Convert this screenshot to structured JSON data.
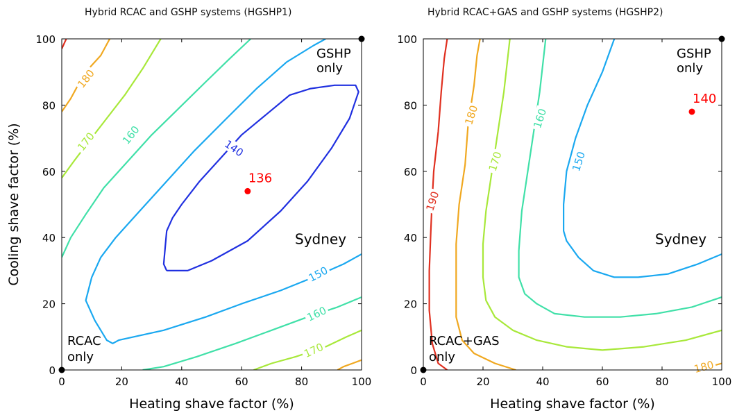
{
  "chart_data": [
    {
      "type": "contour",
      "title": "Hybrid RCAC and GSHP systems (HGSHP1)",
      "xlabel": "Heating shave factor (%)",
      "ylabel": "Cooling shave factor (%)",
      "xlim": [
        0,
        100
      ],
      "ylim": [
        0,
        100
      ],
      "xticks": [
        0,
        20,
        40,
        60,
        80,
        100
      ],
      "yticks": [
        0,
        20,
        40,
        60,
        80,
        100
      ],
      "contours": [
        {
          "level": 140,
          "color": "#2030e0",
          "label": "140",
          "closed": true,
          "points": [
            [
              35,
              30
            ],
            [
              34,
              32
            ],
            [
              34.5,
              37
            ],
            [
              35,
              42
            ],
            [
              37,
              46
            ],
            [
              40,
              50
            ],
            [
              46,
              57
            ],
            [
              53,
              64
            ],
            [
              60,
              71
            ],
            [
              68,
              77
            ],
            [
              76,
              83
            ],
            [
              83,
              85
            ],
            [
              91,
              86
            ],
            [
              98,
              86
            ],
            [
              99,
              84
            ],
            [
              96,
              76
            ],
            [
              90,
              67
            ],
            [
              82,
              57
            ],
            [
              73,
              48
            ],
            [
              62,
              39
            ],
            [
              50,
              33
            ],
            [
              42,
              30
            ],
            [
              36,
              30
            ],
            [
              35,
              30
            ]
          ],
          "label_at": [
            57.5,
            67,
            35
          ]
        },
        {
          "level": 150,
          "color": "#1aa8f0",
          "label": "150",
          "points": [
            [
              100,
              35
            ],
            [
              94,
              32
            ],
            [
              84,
              28
            ],
            [
              73,
              24
            ],
            [
              60,
              20
            ],
            [
              48,
              16
            ],
            [
              34,
              12
            ],
            [
              24,
              10
            ],
            [
              19,
              9
            ],
            [
              17,
              8
            ],
            [
              15,
              9
            ],
            [
              11,
              15
            ],
            [
              8,
              21
            ],
            [
              10,
              28
            ],
            [
              13,
              34
            ],
            [
              18,
              40
            ],
            [
              25,
              47
            ],
            [
              34,
              56
            ],
            [
              44,
              66
            ],
            [
              55,
              76
            ],
            [
              65,
              85
            ],
            [
              75,
              93
            ],
            [
              84,
              98
            ],
            [
              88,
              100
            ]
          ],
          "label_at": [
            85.5,
            29,
            -28
          ]
        },
        {
          "level": 160,
          "color": "#40e0a8",
          "label": "160",
          "points": [
            [
              100,
              22
            ],
            [
              92,
              19
            ],
            [
              82,
              16
            ],
            [
              70,
              12
            ],
            [
              58,
              8
            ],
            [
              45,
              4
            ],
            [
              34,
              1
            ],
            [
              27,
              0
            ]
          ],
          "points2": [
            [
              0,
              34
            ],
            [
              3,
              40
            ],
            [
              8,
              47
            ],
            [
              14,
              55
            ],
            [
              22,
              63
            ],
            [
              30,
              71
            ],
            [
              39,
              79
            ],
            [
              48,
              87
            ],
            [
              56,
              94
            ],
            [
              63,
              100
            ]
          ],
          "label_at": [
            85,
            17,
            -25
          ],
          "label2_at": [
            23,
            71,
            -52
          ]
        },
        {
          "level": 170,
          "color": "#a8e83a",
          "label": "170",
          "points": [
            [
              100,
              12
            ],
            [
              95,
              10
            ],
            [
              88,
              7
            ],
            [
              78,
              4
            ],
            [
              70,
              2
            ],
            [
              64,
              0
            ]
          ],
          "points2": [
            [
              0,
              58
            ],
            [
              4,
              63
            ],
            [
              9,
              69
            ],
            [
              15,
              76
            ],
            [
              21,
              83
            ],
            [
              27,
              91
            ],
            [
              33,
              100
            ]
          ],
          "label_at": [
            84,
            6,
            -25
          ],
          "label2_at": [
            8,
            69,
            -52
          ]
        },
        {
          "level": 180,
          "color": "#f0a820",
          "label": "180",
          "points": [
            [
              100,
              3
            ],
            [
              97,
              2
            ],
            [
              94,
              1
            ],
            [
              92,
              0
            ]
          ],
          "points2": [
            [
              0,
              78
            ],
            [
              3,
              82
            ],
            [
              6,
              87
            ],
            [
              9,
              91
            ],
            [
              13,
              95
            ],
            [
              16,
              100
            ]
          ],
          "label_at": [
            null,
            null,
            0
          ],
          "label2_at": [
            8,
            88,
            -52
          ]
        },
        {
          "level": 190,
          "color": "#e03020",
          "points": [
            [
              0,
              97
            ],
            [
              1,
              99
            ],
            [
              1.5,
              100
            ]
          ]
        }
      ],
      "optimum": {
        "x": 62,
        "y": 54,
        "label": "136",
        "color": "#ff0000"
      },
      "corners": [
        {
          "x": 0,
          "y": 0
        },
        {
          "x": 100,
          "y": 100
        }
      ],
      "annotations": {
        "top_right": [
          "GSHP",
          "only"
        ],
        "bottom_left": [
          "RCAC",
          "only"
        ],
        "city": "Sydney"
      }
    },
    {
      "type": "contour",
      "title": "Hybrid RCAC+GAS and GSHP systems (HGSHP2)",
      "xlabel": "Heating shave factor (%)",
      "ylabel": "",
      "xlim": [
        0,
        100
      ],
      "ylim": [
        0,
        100
      ],
      "xticks": [
        0,
        20,
        40,
        60,
        80,
        100
      ],
      "yticks": [
        0,
        20,
        40,
        60,
        80,
        100
      ],
      "contours": [
        {
          "level": 150,
          "color": "#1aa8f0",
          "label": "150",
          "points": [
            [
              100,
              35
            ],
            [
              92,
              32
            ],
            [
              82,
              29
            ],
            [
              72,
              28
            ],
            [
              64,
              28
            ],
            [
              57,
              30
            ],
            [
              52,
              34
            ],
            [
              48,
              39
            ],
            [
              47,
              42
            ],
            [
              47,
              50
            ],
            [
              48,
              60
            ],
            [
              51,
              70
            ],
            [
              55,
              80
            ],
            [
              60,
              90
            ],
            [
              64,
              100
            ]
          ],
          "label_at": [
            52,
            63,
            -72
          ]
        },
        {
          "level": 160,
          "color": "#40e0a8",
          "label": "160",
          "points": [
            [
              100,
              22
            ],
            [
              90,
              19
            ],
            [
              78,
              17
            ],
            [
              66,
              16
            ],
            [
              54,
              16
            ],
            [
              44,
              17
            ],
            [
              38,
              20
            ],
            [
              34,
              23
            ],
            [
              32,
              28
            ],
            [
              32,
              36
            ],
            [
              33,
              48
            ],
            [
              35,
              60
            ],
            [
              37,
              72
            ],
            [
              39,
              84
            ],
            [
              41,
              100
            ]
          ],
          "label_at": [
            39,
            76,
            -72
          ]
        },
        {
          "level": 170,
          "color": "#a8e83a",
          "label": "170",
          "points": [
            [
              100,
              12
            ],
            [
              88,
              9
            ],
            [
              74,
              7
            ],
            [
              60,
              6
            ],
            [
              48,
              7
            ],
            [
              38,
              9
            ],
            [
              30,
              12
            ],
            [
              24,
              16
            ],
            [
              21,
              21
            ],
            [
              20,
              28
            ],
            [
              20,
              38
            ],
            [
              21,
              48
            ],
            [
              23,
              60
            ],
            [
              25,
              72
            ],
            [
              27,
              84
            ],
            [
              29,
              100
            ]
          ],
          "label_at": [
            24,
            63,
            -72
          ]
        },
        {
          "level": 180,
          "color": "#f0a820",
          "label": "180",
          "points": [
            [
              100,
              2
            ],
            [
              96,
              1
            ],
            [
              93,
              0
            ]
          ],
          "points2": [
            [
              31,
              0
            ],
            [
              24,
              2
            ],
            [
              17,
              5
            ],
            [
              13,
              9
            ],
            [
              11,
              16
            ],
            [
              11,
              26
            ],
            [
              11,
              38
            ],
            [
              12,
              50
            ],
            [
              14,
              62
            ],
            [
              15,
              74
            ],
            [
              17,
              86
            ],
            [
              18,
              95
            ],
            [
              19,
              100
            ]
          ],
          "label_at": [
            94,
            1,
            -15
          ],
          "label2_at": [
            16,
            77,
            -72
          ]
        },
        {
          "level": 190,
          "color": "#e03020",
          "label": "190",
          "points": [
            [
              8,
              0
            ],
            [
              5,
              2
            ],
            [
              3,
              8
            ],
            [
              2,
              18
            ],
            [
              2,
              30
            ],
            [
              2.5,
              42
            ],
            [
              3,
              52
            ],
            [
              3.5,
              60
            ],
            [
              5,
              72
            ],
            [
              6,
              84
            ],
            [
              7,
              94
            ],
            [
              8,
              100
            ]
          ],
          "label_at": [
            3,
            51,
            -72
          ]
        }
      ],
      "optimum": {
        "x": 90,
        "y": 78,
        "label": "140",
        "color": "#ff0000"
      },
      "corners": [
        {
          "x": 0,
          "y": 0
        },
        {
          "x": 100,
          "y": 100
        }
      ],
      "annotations": {
        "top_right": [
          "GSHP",
          "only"
        ],
        "bottom_left": [
          "RCAC+GAS",
          "only"
        ],
        "city": "Sydney"
      }
    }
  ]
}
